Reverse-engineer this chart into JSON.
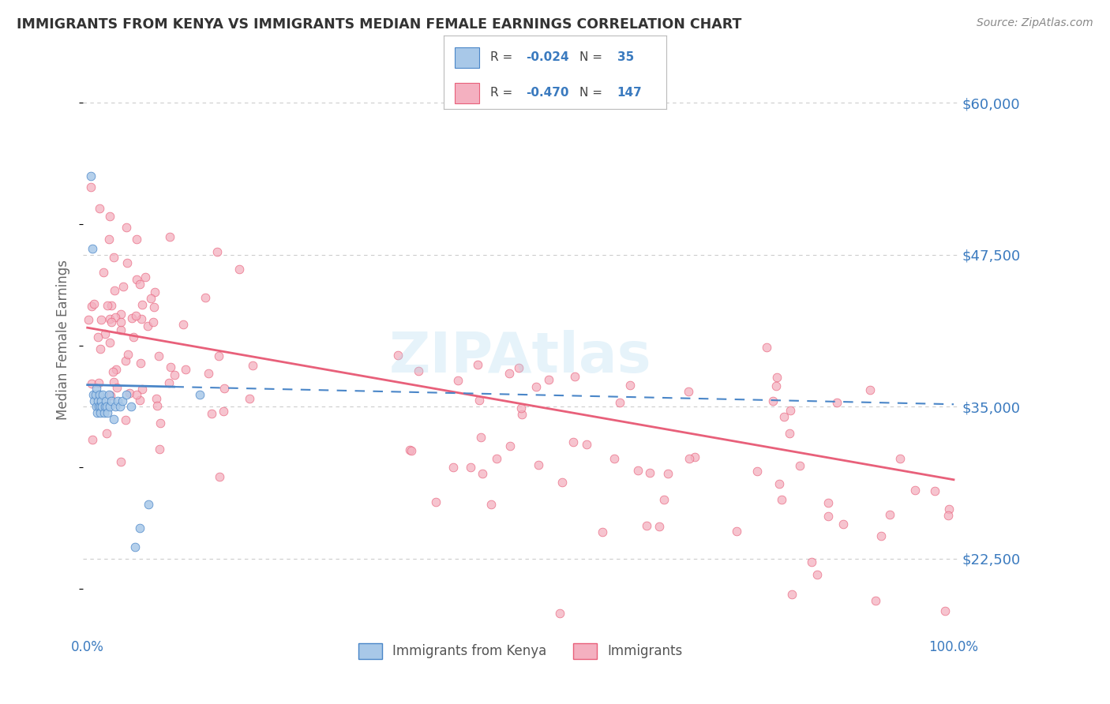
{
  "title": "IMMIGRANTS FROM KENYA VS IMMIGRANTS MEDIAN FEMALE EARNINGS CORRELATION CHART",
  "source": "Source: ZipAtlas.com",
  "ylabel": "Median Female Earnings",
  "yticks": [
    22500,
    35000,
    47500,
    60000
  ],
  "ytick_labels": [
    "$22,500",
    "$35,000",
    "$47,500",
    "$60,000"
  ],
  "ymin": 17000,
  "ymax": 64000,
  "xmin": -0.005,
  "xmax": 1.005,
  "color_blue": "#a8c8e8",
  "color_pink": "#f4b0c0",
  "color_blue_line": "#4a86c8",
  "color_pink_line": "#e8607a",
  "color_axis_label": "#3a7abf",
  "grid_color": "#cccccc",
  "title_color": "#333333",
  "source_color": "#888888",
  "background": "#ffffff",
  "trend1_x0": 0.0,
  "trend1_x1": 1.0,
  "trend1_y0": 36800,
  "trend1_y1": 35200,
  "trend2_x0": 0.0,
  "trend2_x1": 1.0,
  "trend2_y0": 41500,
  "trend2_y1": 29000,
  "watermark": "ZIPAtlas",
  "watermark_color": "#add8f0",
  "legend_items": [
    {
      "color": "#a8c8e8",
      "edge": "#4a86c8",
      "r": "-0.024",
      "n": "35"
    },
    {
      "color": "#f4b0c0",
      "edge": "#e8607a",
      "r": "-0.470",
      "n": "147"
    }
  ]
}
